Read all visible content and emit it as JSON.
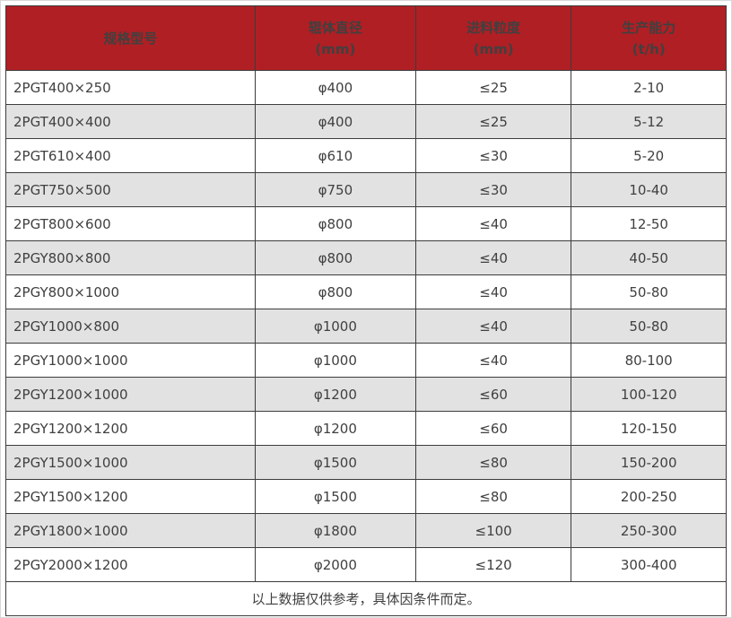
{
  "chart_data": {
    "type": "table",
    "title": "",
    "column_keys": [
      "model",
      "roller-diameter",
      "feed-size",
      "capacity"
    ],
    "headers": [
      {
        "label": "规格型号",
        "sub": ""
      },
      {
        "label": "辊体直径",
        "sub": "(mm)"
      },
      {
        "label": "进料粒度",
        "sub": "(mm)"
      },
      {
        "label": "生产能力",
        "sub": "(t/h)"
      }
    ],
    "rows": [
      [
        "2PGT400×250",
        "φ400",
        "≤25",
        "2-10"
      ],
      [
        "2PGT400×400",
        "φ400",
        "≤25",
        "5-12"
      ],
      [
        "2PGT610×400",
        "φ610",
        "≤30",
        "5-20"
      ],
      [
        "2PGT750×500",
        "φ750",
        "≤30",
        "10-40"
      ],
      [
        "2PGT800×600",
        "φ800",
        "≤40",
        "12-50"
      ],
      [
        "2PGY800×800",
        "φ800",
        "≤40",
        "40-50"
      ],
      [
        "2PGY800×1000",
        "φ800",
        "≤40",
        "50-80"
      ],
      [
        "2PGY1000×800",
        "φ1000",
        "≤40",
        "50-80"
      ],
      [
        "2PGY1000×1000",
        "φ1000",
        "≤40",
        "80-100"
      ],
      [
        "2PGY1200×1000",
        "φ1200",
        "≤60",
        "100-120"
      ],
      [
        "2PGY1200×1200",
        "φ1200",
        "≤60",
        "120-150"
      ],
      [
        "2PGY1500×1000",
        "φ1500",
        "≤80",
        "150-200"
      ],
      [
        "2PGY1500×1200",
        "φ1500",
        "≤80",
        "200-250"
      ],
      [
        "2PGY1800×1000",
        "φ1800",
        "≤100",
        "250-300"
      ],
      [
        "2PGY2000×1200",
        "φ2000",
        "≤120",
        "300-400"
      ]
    ],
    "footer": "以上数据仅供参考，具体因条件而定。"
  },
  "colors": {
    "header_bg": "#b01f24",
    "header_text": "#ffffff",
    "row_alt_bg": "#e2e2e2",
    "border": "#3c3c3c",
    "body_text": "#404040"
  }
}
